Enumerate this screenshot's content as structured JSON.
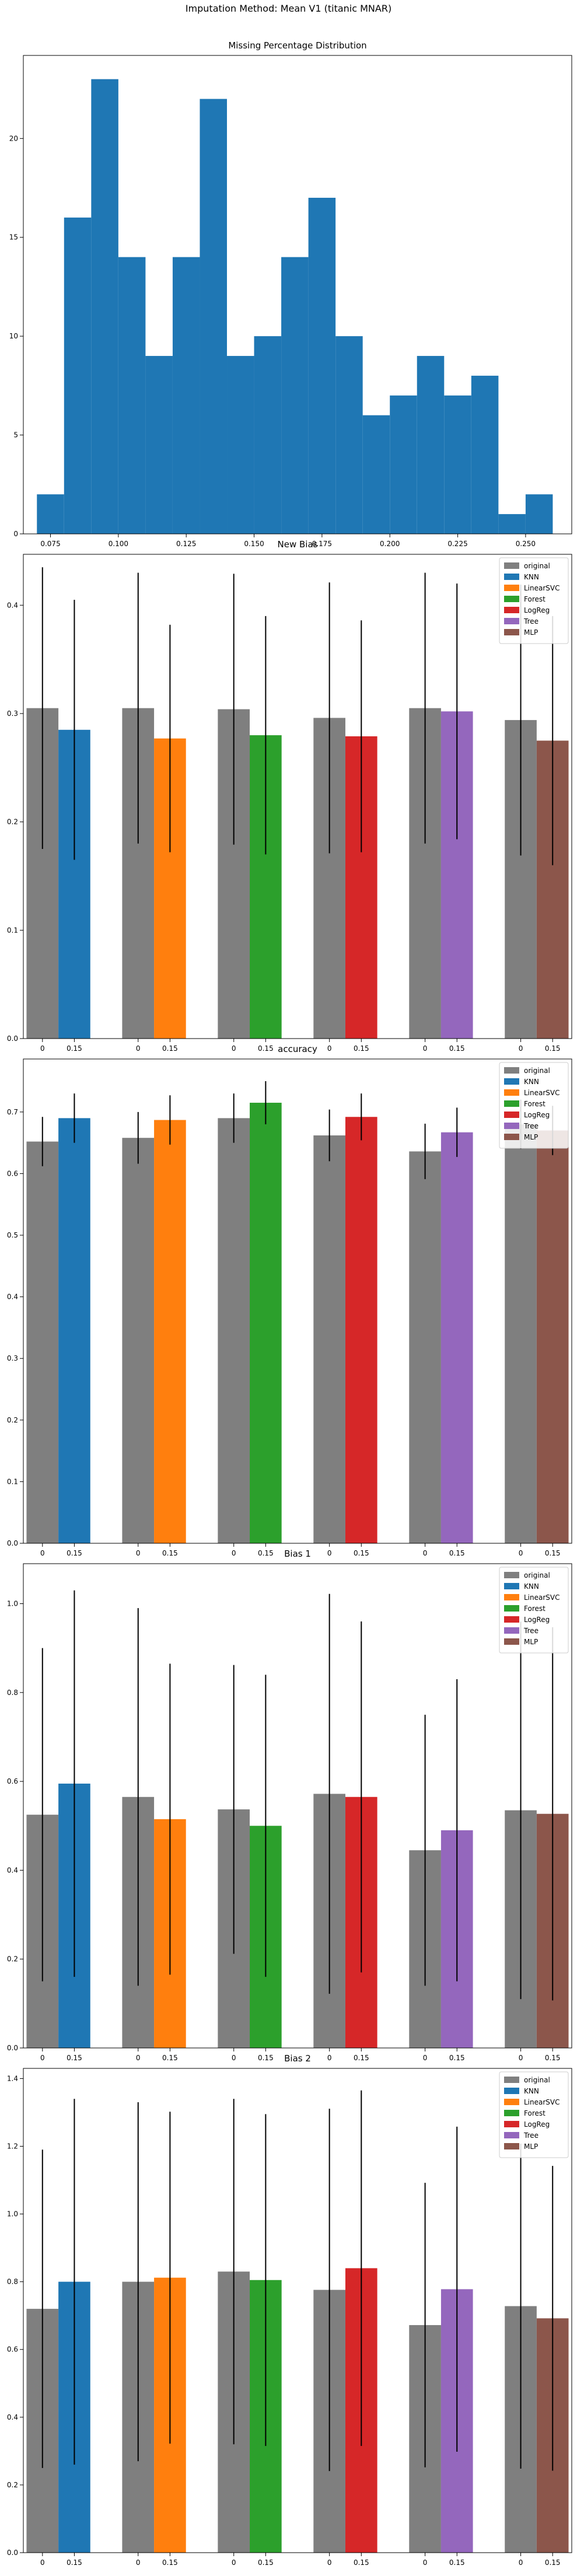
{
  "figure_title": "Imputation Method: Mean V1 (titanic MNAR)",
  "colors": {
    "original": "#7f7f7f",
    "KNN": "#1f77b4",
    "LinearSVC": "#ff7f0e",
    "Forest": "#2ca02c",
    "LogReg": "#d62728",
    "Tree": "#9467bd",
    "MLP": "#8c564b",
    "histogram": "#1f77b4",
    "error_bar": "#000000"
  },
  "legend_entries": [
    "original",
    "KNN",
    "LinearSVC",
    "Forest",
    "LogReg",
    "Tree",
    "MLP"
  ],
  "chart_data": [
    {
      "type": "bar",
      "subtype": "histogram",
      "title": "Missing Percentage Distribution",
      "xlim": [
        0.065,
        0.267
      ],
      "ylim": [
        0,
        24.2
      ],
      "x_ticks": [
        0.075,
        0.1,
        0.125,
        0.15,
        0.175,
        0.2,
        0.225,
        0.25
      ],
      "x_tick_labels": [
        "0.075",
        "0.100",
        "0.125",
        "0.150",
        "0.175",
        "0.200",
        "0.225",
        "0.250"
      ],
      "y_ticks": [
        0,
        5,
        10,
        15,
        20
      ],
      "y_tick_labels": [
        "0",
        "5",
        "10",
        "15",
        "20"
      ],
      "bin_edges": [
        0.07,
        0.08,
        0.09,
        0.1,
        0.11,
        0.12,
        0.13,
        0.14,
        0.15,
        0.16,
        0.17,
        0.18,
        0.19,
        0.2,
        0.21,
        0.22,
        0.23,
        0.24,
        0.25,
        0.26
      ],
      "counts": [
        2,
        16,
        23,
        14,
        9,
        14,
        22,
        9,
        10,
        14,
        17,
        10,
        6,
        7,
        9,
        7,
        8,
        1,
        2
      ],
      "grid": false
    },
    {
      "type": "bar",
      "title": "New Bias",
      "ylim": [
        0,
        0.447
      ],
      "y_ticks": [
        0,
        0.1,
        0.2,
        0.3,
        0.4
      ],
      "y_tick_labels": [
        "0.0",
        "0.1",
        "0.2",
        "0.3",
        "0.4"
      ],
      "legend": "top-right",
      "groups": [
        {
          "model": "KNN",
          "x_labels": [
            "0",
            "0.15"
          ],
          "values": [
            0.305,
            0.285
          ],
          "errors": [
            0.13,
            0.12
          ]
        },
        {
          "model": "LinearSVC",
          "x_labels": [
            "0",
            "0.15"
          ],
          "values": [
            0.305,
            0.277
          ],
          "errors": [
            0.125,
            0.105
          ]
        },
        {
          "model": "Forest",
          "x_labels": [
            "0",
            "0.15"
          ],
          "values": [
            0.304,
            0.28
          ],
          "errors": [
            0.125,
            0.11
          ]
        },
        {
          "model": "LogReg",
          "x_labels": [
            "0",
            "0.15"
          ],
          "values": [
            0.296,
            0.279
          ],
          "errors": [
            0.125,
            0.107
          ]
        },
        {
          "model": "Tree",
          "x_labels": [
            "0",
            "0.15"
          ],
          "values": [
            0.305,
            0.302
          ],
          "errors": [
            0.125,
            0.118
          ]
        },
        {
          "model": "MLP",
          "x_labels": [
            "0",
            "0.15"
          ],
          "values": [
            0.294,
            0.275
          ],
          "errors": [
            0.125,
            0.115
          ]
        }
      ]
    },
    {
      "type": "bar",
      "title": "accuracy",
      "ylim": [
        0,
        0.786
      ],
      "y_ticks": [
        0,
        0.1,
        0.2,
        0.3,
        0.4,
        0.5,
        0.6,
        0.7
      ],
      "y_tick_labels": [
        "0.0",
        "0.1",
        "0.2",
        "0.3",
        "0.4",
        "0.5",
        "0.6",
        "0.7"
      ],
      "legend": "top-right",
      "groups": [
        {
          "model": "KNN",
          "x_labels": [
            "0",
            "0.15"
          ],
          "values": [
            0.652,
            0.69
          ],
          "errors": [
            0.04,
            0.04
          ]
        },
        {
          "model": "LinearSVC",
          "x_labels": [
            "0",
            "0.15"
          ],
          "values": [
            0.658,
            0.687
          ],
          "errors": [
            0.042,
            0.04
          ]
        },
        {
          "model": "Forest",
          "x_labels": [
            "0",
            "0.15"
          ],
          "values": [
            0.69,
            0.715
          ],
          "errors": [
            0.04,
            0.035
          ]
        },
        {
          "model": "LogReg",
          "x_labels": [
            "0",
            "0.15"
          ],
          "values": [
            0.662,
            0.692
          ],
          "errors": [
            0.042,
            0.038
          ]
        },
        {
          "model": "Tree",
          "x_labels": [
            "0",
            "0.15"
          ],
          "values": [
            0.636,
            0.667
          ],
          "errors": [
            0.045,
            0.04
          ]
        },
        {
          "model": "MLP",
          "x_labels": [
            "0",
            "0.15"
          ],
          "values": [
            0.68,
            0.67
          ],
          "errors": [
            0.04,
            0.04
          ]
        }
      ]
    },
    {
      "type": "bar",
      "title": "Bias 1",
      "ylim": [
        0,
        1.09
      ],
      "y_ticks": [
        0,
        0.2,
        0.4,
        0.6,
        0.8,
        1.0
      ],
      "y_tick_labels": [
        "0.0",
        "0.2",
        "0.4",
        "0.6",
        "0.8",
        "1.0"
      ],
      "legend": "top-right",
      "groups": [
        {
          "model": "KNN",
          "x_labels": [
            "0",
            "0.15"
          ],
          "values": [
            0.525,
            0.595
          ],
          "errors": [
            0.375,
            0.435
          ]
        },
        {
          "model": "LinearSVC",
          "x_labels": [
            "0",
            "0.15"
          ],
          "values": [
            0.565,
            0.515
          ],
          "errors": [
            0.425,
            0.35
          ]
        },
        {
          "model": "Forest",
          "x_labels": [
            "0",
            "0.15"
          ],
          "values": [
            0.537,
            0.5
          ],
          "errors": [
            0.325,
            0.34
          ]
        },
        {
          "model": "LogReg",
          "x_labels": [
            "0",
            "0.15"
          ],
          "values": [
            0.572,
            0.565
          ],
          "errors": [
            0.45,
            0.395
          ]
        },
        {
          "model": "Tree",
          "x_labels": [
            "0",
            "0.15"
          ],
          "values": [
            0.445,
            0.49
          ],
          "errors": [
            0.305,
            0.34
          ]
        },
        {
          "model": "MLP",
          "x_labels": [
            "0",
            "0.15"
          ],
          "values": [
            0.535,
            0.527
          ],
          "errors": [
            0.425,
            0.42
          ]
        }
      ]
    },
    {
      "type": "bar",
      "title": "Bias 2",
      "ylim": [
        0,
        1.43
      ],
      "y_ticks": [
        0,
        0.2,
        0.4,
        0.6,
        0.8,
        1.0,
        1.2,
        1.4
      ],
      "y_tick_labels": [
        "0.0",
        "0.2",
        "0.4",
        "0.6",
        "0.8",
        "1.0",
        "1.2",
        "1.4"
      ],
      "legend": "top-right",
      "groups": [
        {
          "model": "KNN",
          "x_labels": [
            "0",
            "0.15"
          ],
          "values": [
            0.72,
            0.8
          ],
          "errors": [
            0.47,
            0.54
          ]
        },
        {
          "model": "LinearSVC",
          "x_labels": [
            "0",
            "0.15"
          ],
          "values": [
            0.8,
            0.812
          ],
          "errors": [
            0.53,
            0.49
          ]
        },
        {
          "model": "Forest",
          "x_labels": [
            "0",
            "0.15"
          ],
          "values": [
            0.83,
            0.805
          ],
          "errors": [
            0.51,
            0.49
          ]
        },
        {
          "model": "LogReg",
          "x_labels": [
            "0",
            "0.15"
          ],
          "values": [
            0.776,
            0.84
          ],
          "errors": [
            0.535,
            0.525
          ]
        },
        {
          "model": "Tree",
          "x_labels": [
            "0",
            "0.15"
          ],
          "values": [
            0.672,
            0.778
          ],
          "errors": [
            0.42,
            0.48
          ]
        },
        {
          "model": "MLP",
          "x_labels": [
            "0",
            "0.15"
          ],
          "values": [
            0.728,
            0.692
          ],
          "errors": [
            0.48,
            0.45
          ]
        }
      ]
    }
  ]
}
